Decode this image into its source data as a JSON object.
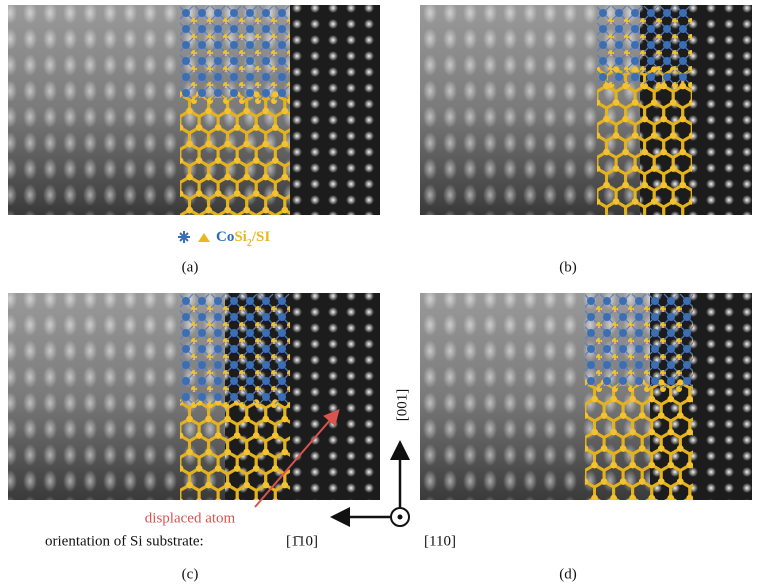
{
  "panels": [
    {
      "label": "(a)"
    },
    {
      "label": "(b)"
    },
    {
      "label": "(c)"
    },
    {
      "label": "(d)"
    }
  ],
  "legend": {
    "co": "Co",
    "si": "Si",
    "sub": "2",
    "rest": "/SI"
  },
  "annotations": {
    "direction_001": "[001]",
    "displaced_atom": "displaced atom",
    "orientation": "orientation of Si substrate:",
    "direction_1bar10": "[1̄10]",
    "direction_110": "[110]"
  }
}
